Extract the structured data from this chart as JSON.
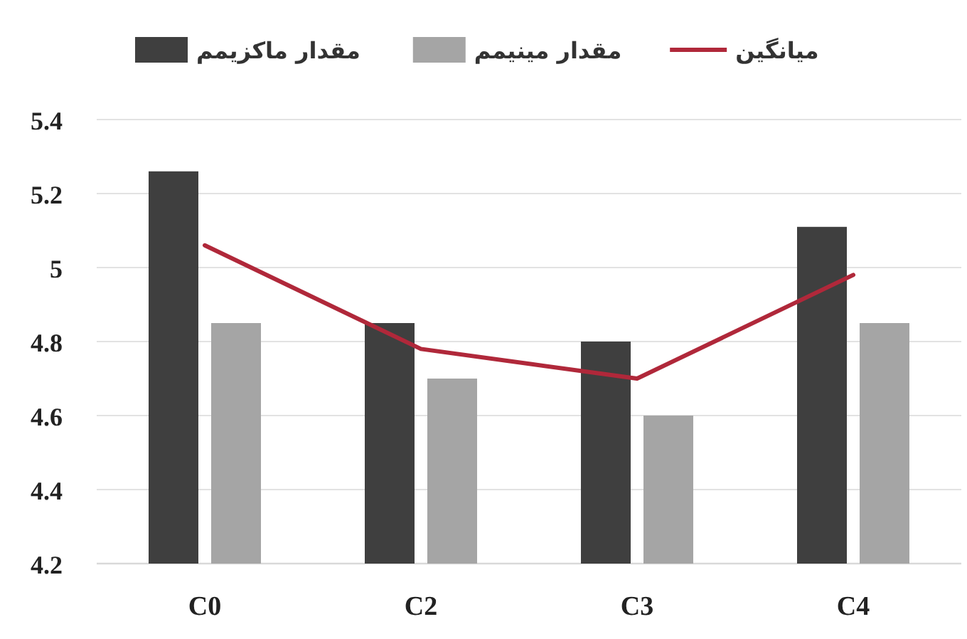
{
  "chart_data": {
    "type": "bar",
    "categories": [
      "C0",
      "C2",
      "C3",
      "C4"
    ],
    "series": [
      {
        "name": "مقدار ماکزیمم",
        "color": "#3f3f3f",
        "values": [
          5.26,
          4.85,
          4.8,
          5.11
        ]
      },
      {
        "name": "مقدار مینیمم",
        "color": "#a5a5a5",
        "values": [
          4.85,
          4.7,
          4.6,
          4.85
        ]
      },
      {
        "name": "میانگین",
        "color": "#b0283a",
        "type": "line",
        "values": [
          5.06,
          4.78,
          4.7,
          4.98
        ]
      }
    ],
    "ylim": [
      4.2,
      5.4
    ],
    "yticks": [
      4.2,
      4.4,
      4.6,
      4.8,
      5,
      5.2,
      5.4
    ],
    "grid": "y",
    "legend": "top"
  }
}
